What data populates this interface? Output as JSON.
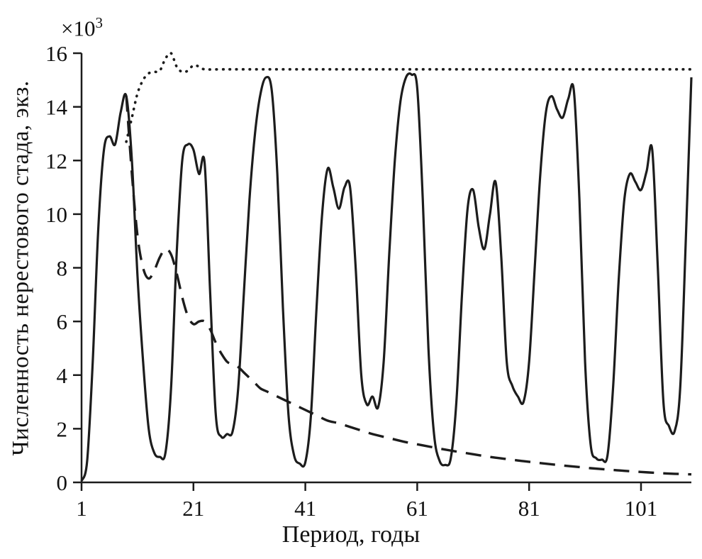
{
  "chart_data": {
    "type": "line",
    "title": "",
    "xlabel": "Период, годы",
    "ylabel": "Численность нерестового стада, экз.",
    "y_multiplier": {
      "base": "×10",
      "exponent": "3"
    },
    "xlim": [
      1,
      110
    ],
    "ylim": [
      0,
      16
    ],
    "x_ticks": [
      1,
      21,
      41,
      61,
      81,
      101
    ],
    "y_ticks": [
      0,
      2,
      4,
      6,
      8,
      10,
      12,
      14,
      16
    ],
    "grid": false,
    "legend": "none",
    "line_color": "#1c1c1c",
    "series": [
      {
        "name": "solid-oscillating",
        "style": "solid",
        "points": [
          [
            1,
            0.05
          ],
          [
            2,
            0.8
          ],
          [
            3,
            4.5
          ],
          [
            4,
            9.5
          ],
          [
            5,
            12.4
          ],
          [
            6,
            12.9
          ],
          [
            7,
            12.6
          ],
          [
            8,
            13.8
          ],
          [
            9,
            14.4
          ],
          [
            10,
            12.0
          ],
          [
            11,
            7.7
          ],
          [
            12,
            4.5
          ],
          [
            13,
            2.0
          ],
          [
            14,
            1.1
          ],
          [
            15,
            0.95
          ],
          [
            16,
            1.1
          ],
          [
            17,
            3.5
          ],
          [
            18,
            8.5
          ],
          [
            19,
            12.0
          ],
          [
            20,
            12.6
          ],
          [
            21,
            12.4
          ],
          [
            22,
            11.5
          ],
          [
            23,
            11.9
          ],
          [
            24,
            7.0
          ],
          [
            25,
            2.5
          ],
          [
            26,
            1.7
          ],
          [
            27,
            1.8
          ],
          [
            28,
            1.9
          ],
          [
            29,
            3.5
          ],
          [
            30,
            7.0
          ],
          [
            31,
            10.5
          ],
          [
            32,
            13.0
          ],
          [
            33,
            14.5
          ],
          [
            34,
            15.1
          ],
          [
            35,
            14.6
          ],
          [
            36,
            11.5
          ],
          [
            37,
            6.5
          ],
          [
            38,
            2.5
          ],
          [
            39,
            1.0
          ],
          [
            40,
            0.7
          ],
          [
            41,
            0.75
          ],
          [
            42,
            2.5
          ],
          [
            43,
            6.5
          ],
          [
            44,
            10.0
          ],
          [
            45,
            11.7
          ],
          [
            46,
            11.0
          ],
          [
            47,
            10.2
          ],
          [
            48,
            11.0
          ],
          [
            49,
            11.0
          ],
          [
            50,
            8.0
          ],
          [
            51,
            4.0
          ],
          [
            52,
            2.9
          ],
          [
            53,
            3.2
          ],
          [
            54,
            2.8
          ],
          [
            55,
            4.5
          ],
          [
            56,
            8.5
          ],
          [
            57,
            12.0
          ],
          [
            58,
            14.2
          ],
          [
            59,
            15.1
          ],
          [
            60,
            15.2
          ],
          [
            61,
            14.7
          ],
          [
            62,
            10.5
          ],
          [
            63,
            5.0
          ],
          [
            64,
            1.8
          ],
          [
            65,
            0.8
          ],
          [
            66,
            0.65
          ],
          [
            67,
            0.9
          ],
          [
            68,
            3.0
          ],
          [
            69,
            7.0
          ],
          [
            70,
            10.2
          ],
          [
            71,
            10.9
          ],
          [
            72,
            9.5
          ],
          [
            73,
            8.7
          ],
          [
            74,
            10.0
          ],
          [
            75,
            11.2
          ],
          [
            76,
            8.5
          ],
          [
            77,
            4.5
          ],
          [
            78,
            3.6
          ],
          [
            79,
            3.2
          ],
          [
            80,
            3.0
          ],
          [
            81,
            4.5
          ],
          [
            82,
            8.0
          ],
          [
            83,
            11.5
          ],
          [
            84,
            13.8
          ],
          [
            85,
            14.4
          ],
          [
            86,
            13.9
          ],
          [
            87,
            13.6
          ],
          [
            88,
            14.3
          ],
          [
            89,
            14.6
          ],
          [
            90,
            10.5
          ],
          [
            91,
            4.5
          ],
          [
            92,
            1.4
          ],
          [
            93,
            0.9
          ],
          [
            94,
            0.85
          ],
          [
            95,
            1.0
          ],
          [
            96,
            3.5
          ],
          [
            97,
            7.5
          ],
          [
            98,
            10.5
          ],
          [
            99,
            11.5
          ],
          [
            100,
            11.2
          ],
          [
            101,
            10.9
          ],
          [
            102,
            11.6
          ],
          [
            103,
            12.4
          ],
          [
            104,
            8.0
          ],
          [
            105,
            3.0
          ],
          [
            106,
            2.1
          ],
          [
            107,
            1.9
          ],
          [
            108,
            3.5
          ],
          [
            109,
            9.0
          ],
          [
            110,
            15.1
          ]
        ]
      },
      {
        "name": "dashed-decaying",
        "style": "dashed",
        "points": [
          [
            9,
            14.4
          ],
          [
            10,
            11.5
          ],
          [
            11,
            9.2
          ],
          [
            12,
            8.0
          ],
          [
            13,
            7.6
          ],
          [
            14,
            7.9
          ],
          [
            15,
            8.4
          ],
          [
            16,
            8.7
          ],
          [
            17,
            8.5
          ],
          [
            18,
            7.8
          ],
          [
            19,
            6.9
          ],
          [
            20,
            6.2
          ],
          [
            21,
            5.9
          ],
          [
            22,
            6.0
          ],
          [
            23,
            6.0
          ],
          [
            24,
            5.7
          ],
          [
            25,
            5.2
          ],
          [
            26,
            4.8
          ],
          [
            27,
            4.5
          ],
          [
            28,
            4.4
          ],
          [
            29,
            4.3
          ],
          [
            30,
            4.1
          ],
          [
            31,
            3.9
          ],
          [
            32,
            3.7
          ],
          [
            33,
            3.5
          ],
          [
            34,
            3.4
          ],
          [
            35,
            3.3
          ],
          [
            37,
            3.1
          ],
          [
            39,
            2.9
          ],
          [
            41,
            2.7
          ],
          [
            43,
            2.5
          ],
          [
            45,
            2.3
          ],
          [
            47,
            2.2
          ],
          [
            50,
            2.0
          ],
          [
            53,
            1.8
          ],
          [
            56,
            1.65
          ],
          [
            59,
            1.5
          ],
          [
            62,
            1.38
          ],
          [
            65,
            1.26
          ],
          [
            68,
            1.15
          ],
          [
            71,
            1.05
          ],
          [
            74,
            0.95
          ],
          [
            77,
            0.87
          ],
          [
            80,
            0.79
          ],
          [
            83,
            0.72
          ],
          [
            86,
            0.65
          ],
          [
            89,
            0.59
          ],
          [
            92,
            0.53
          ],
          [
            95,
            0.48
          ],
          [
            98,
            0.43
          ],
          [
            101,
            0.39
          ],
          [
            104,
            0.35
          ],
          [
            107,
            0.32
          ],
          [
            110,
            0.3
          ]
        ]
      },
      {
        "name": "dotted-plateau",
        "style": "dotted",
        "points": [
          [
            9,
            12.7
          ],
          [
            10,
            13.6
          ],
          [
            11,
            14.5
          ],
          [
            12,
            15.0
          ],
          [
            13,
            15.25
          ],
          [
            14,
            15.3
          ],
          [
            15,
            15.35
          ],
          [
            16,
            15.8
          ],
          [
            17,
            16.0
          ],
          [
            18,
            15.5
          ],
          [
            19,
            15.3
          ],
          [
            20,
            15.35
          ],
          [
            21,
            15.55
          ],
          [
            22,
            15.5
          ],
          [
            23,
            15.4
          ],
          [
            26,
            15.4
          ],
          [
            30,
            15.4
          ],
          [
            40,
            15.4
          ],
          [
            50,
            15.4
          ],
          [
            60,
            15.4
          ],
          [
            70,
            15.4
          ],
          [
            80,
            15.4
          ],
          [
            90,
            15.4
          ],
          [
            100,
            15.4
          ],
          [
            110,
            15.4
          ]
        ]
      }
    ]
  }
}
